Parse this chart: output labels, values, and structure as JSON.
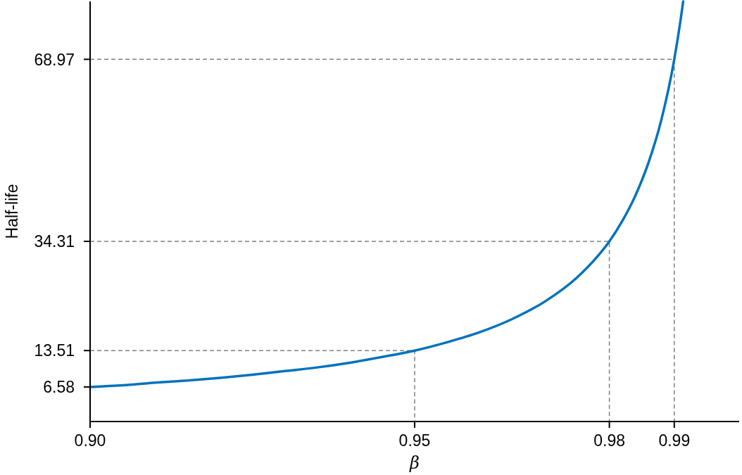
{
  "chart_data": {
    "type": "line",
    "xlabel": "β",
    "ylabel": "Half-life",
    "xlim": [
      0.9,
      1.0
    ],
    "ylim": [
      0,
      80
    ],
    "xticks": [
      {
        "value": 0.9,
        "label": "0.90"
      },
      0.95,
      0.98,
      0.99
    ],
    "yticks": [
      6.58,
      13.51,
      34.31,
      68.97
    ],
    "series": [
      {
        "color": "#0072bd",
        "x": [
          0.9,
          0.905,
          0.91,
          0.915,
          0.92,
          0.925,
          0.93,
          0.935,
          0.94,
          0.945,
          0.95,
          0.955,
          0.96,
          0.965,
          0.97,
          0.975,
          0.978,
          0.98,
          0.982,
          0.984,
          0.986,
          0.988,
          0.99,
          0.991,
          0.99137
        ],
        "values": [
          6.58,
          6.9,
          7.4,
          7.8,
          8.3,
          8.9,
          9.6,
          10.3,
          11.2,
          12.3,
          13.51,
          15.1,
          17.0,
          19.5,
          22.8,
          27.4,
          31.2,
          34.31,
          38.2,
          43.0,
          49.2,
          57.4,
          68.97,
          76.7,
          80.0
        ]
      },
      {
        "color": "#808080",
        "line_style": "dashed",
        "x": [
          0.9,
          0.95,
          0.95
        ],
        "values": [
          13.51,
          13.51,
          0
        ]
      },
      {
        "color": "#808080",
        "line_style": "dashed",
        "x": [
          0.9,
          0.98,
          0.98
        ],
        "values": [
          34.31,
          34.31,
          0
        ]
      },
      {
        "color": "#808080",
        "line_style": "dashed",
        "x": [
          0.9,
          0.99,
          0.99
        ],
        "values": [
          68.97,
          68.97,
          0
        ]
      }
    ]
  }
}
